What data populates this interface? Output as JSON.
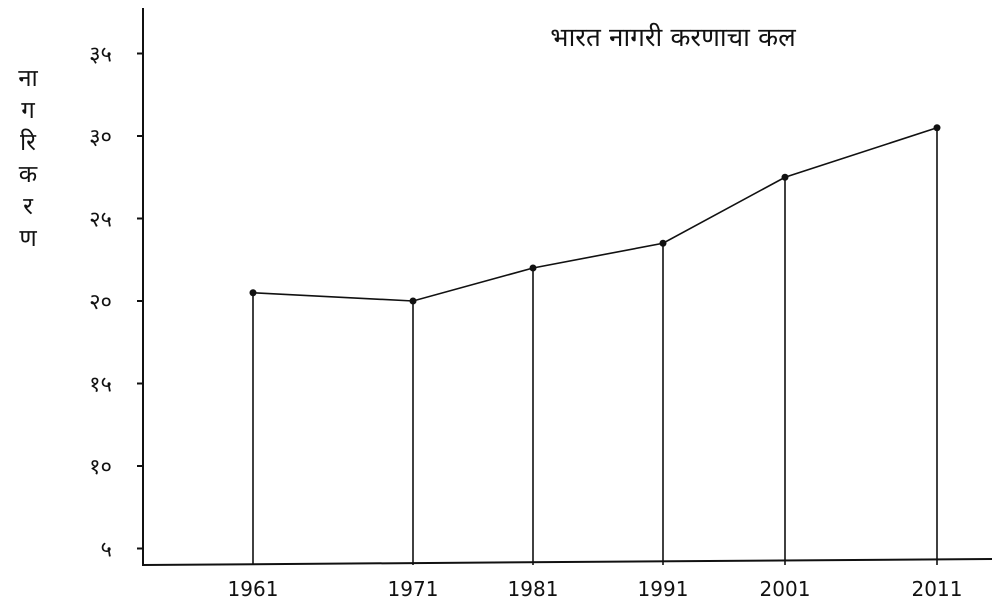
{
  "chart_data": {
    "type": "line",
    "title": "भारत नागरी करणाचा कल",
    "xlabel": "",
    "ylabel": [
      "ना",
      "ग",
      "रि",
      "क",
      "र",
      "ण"
    ],
    "categories": [
      "1961",
      "1971",
      "1981",
      "1991",
      "2001",
      "2011"
    ],
    "values": [
      20.5,
      20,
      22,
      23.5,
      27.5,
      30.5
    ],
    "ylim": [
      4,
      36
    ],
    "yticks": [
      {
        "value": 5,
        "label": "५"
      },
      {
        "value": 10,
        "label": "१०"
      },
      {
        "value": 15,
        "label": "१५"
      },
      {
        "value": 20,
        "label": "२०"
      },
      {
        "value": 25,
        "label": "२५"
      },
      {
        "value": 30,
        "label": "३०"
      },
      {
        "value": 35,
        "label": "३५"
      }
    ],
    "drop_lines": true,
    "grid": false,
    "line_color": "#111111"
  }
}
